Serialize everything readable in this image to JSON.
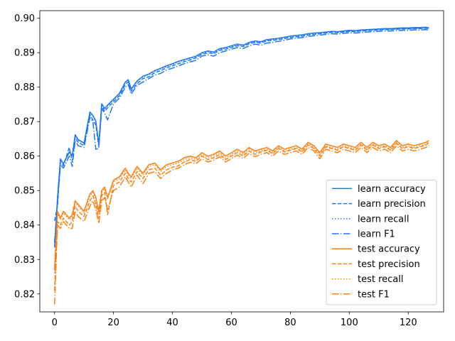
{
  "chart_data": {
    "type": "line",
    "title": "",
    "xlabel": "",
    "ylabel": "",
    "xlim": [
      -5,
      132
    ],
    "ylim": [
      0.8148,
      0.9022
    ],
    "xticks": [
      0,
      20,
      40,
      60,
      80,
      100,
      120
    ],
    "yticks": [
      0.82,
      0.83,
      0.84,
      0.85,
      0.86,
      0.87,
      0.88,
      0.89,
      0.9
    ],
    "ytick_labels": [
      "0.82",
      "0.83",
      "0.84",
      "0.85",
      "0.86",
      "0.87",
      "0.88",
      "0.89",
      "0.90"
    ],
    "grid": false,
    "legend_position": "lower-right",
    "colors": {
      "learn": "#1f77f4",
      "test": "#ff7f0e"
    },
    "x": [
      0,
      1,
      2,
      3,
      5,
      6,
      7,
      8,
      10,
      12,
      13,
      14,
      15,
      16,
      17,
      18,
      20,
      22,
      24,
      25,
      26,
      28,
      30,
      32,
      34,
      36,
      38,
      40,
      42,
      44,
      46,
      48,
      50,
      52,
      54,
      56,
      58,
      60,
      62,
      64,
      66,
      68,
      70,
      72,
      74,
      76,
      78,
      80,
      82,
      84,
      86,
      88,
      90,
      92,
      94,
      96,
      98,
      100,
      102,
      104,
      106,
      108,
      110,
      112,
      114,
      116,
      118,
      120,
      122,
      124,
      126,
      127
    ],
    "series": [
      {
        "name": "learn accuracy",
        "group": "learn",
        "dash": "solid",
        "values": [
          0.8335,
          0.8478,
          0.8592,
          0.8578,
          0.8612,
          0.8602,
          0.8662,
          0.8648,
          0.8638,
          0.8728,
          0.8718,
          0.8702,
          0.8635,
          0.8752,
          0.8738,
          0.8748,
          0.8765,
          0.8782,
          0.8815,
          0.8822,
          0.8795,
          0.8818,
          0.8832,
          0.8838,
          0.8848,
          0.8855,
          0.8862,
          0.8868,
          0.8875,
          0.888,
          0.8885,
          0.889,
          0.89,
          0.8905,
          0.8902,
          0.8912,
          0.8915,
          0.892,
          0.8925,
          0.8922,
          0.893,
          0.8934,
          0.8932,
          0.8938,
          0.894,
          0.8942,
          0.8945,
          0.8948,
          0.895,
          0.8952,
          0.8955,
          0.8957,
          0.8958,
          0.896,
          0.8962,
          0.8961,
          0.8963,
          0.8965,
          0.8964,
          0.8966,
          0.8967,
          0.8968,
          0.8969,
          0.897,
          0.897,
          0.8971,
          0.8972,
          0.8972,
          0.8973,
          0.8973,
          0.8974,
          0.8972
        ]
      },
      {
        "name": "learn precision",
        "group": "learn",
        "dash": "dashed",
        "values": [
          0.8412,
          0.8455,
          0.8582,
          0.8572,
          0.8625,
          0.8585,
          0.8655,
          0.864,
          0.863,
          0.872,
          0.8705,
          0.869,
          0.8628,
          0.8745,
          0.873,
          0.874,
          0.8758,
          0.8775,
          0.8808,
          0.8815,
          0.8788,
          0.881,
          0.8825,
          0.883,
          0.8842,
          0.8848,
          0.8856,
          0.8862,
          0.8868,
          0.8874,
          0.8879,
          0.8885,
          0.8895,
          0.89,
          0.8897,
          0.8907,
          0.891,
          0.8915,
          0.892,
          0.8918,
          0.8926,
          0.893,
          0.8928,
          0.8934,
          0.8936,
          0.8938,
          0.8941,
          0.8944,
          0.8946,
          0.8948,
          0.8951,
          0.8953,
          0.8955,
          0.8957,
          0.8959,
          0.8958,
          0.896,
          0.8962,
          0.8961,
          0.8963,
          0.8964,
          0.8965,
          0.8966,
          0.8967,
          0.8967,
          0.8968,
          0.8969,
          0.8969,
          0.897,
          0.897,
          0.8971,
          0.8969
        ]
      },
      {
        "name": "learn recall",
        "group": "learn",
        "dash": "dotted",
        "values": [
          0.834,
          0.848,
          0.859,
          0.8576,
          0.861,
          0.86,
          0.866,
          0.8646,
          0.8636,
          0.8726,
          0.8716,
          0.87,
          0.8633,
          0.875,
          0.8736,
          0.8746,
          0.8763,
          0.878,
          0.8813,
          0.882,
          0.8793,
          0.8816,
          0.883,
          0.8836,
          0.8846,
          0.8853,
          0.886,
          0.8866,
          0.8873,
          0.8878,
          0.8883,
          0.8888,
          0.8898,
          0.8903,
          0.89,
          0.891,
          0.8913,
          0.8918,
          0.8923,
          0.892,
          0.8928,
          0.8932,
          0.893,
          0.8936,
          0.8938,
          0.894,
          0.8943,
          0.8946,
          0.8948,
          0.895,
          0.8953,
          0.8955,
          0.8956,
          0.8958,
          0.896,
          0.8959,
          0.8961,
          0.8963,
          0.8962,
          0.8964,
          0.8965,
          0.8966,
          0.8967,
          0.8968,
          0.8968,
          0.8969,
          0.897,
          0.897,
          0.8971,
          0.8971,
          0.8972,
          0.897
        ]
      },
      {
        "name": "learn F1",
        "group": "learn",
        "dash": "dashdot",
        "values": [
          0.835,
          0.8465,
          0.8575,
          0.8565,
          0.86,
          0.857,
          0.8645,
          0.863,
          0.8625,
          0.8712,
          0.87,
          0.862,
          0.8622,
          0.8738,
          0.8725,
          0.8705,
          0.8752,
          0.8768,
          0.88,
          0.8808,
          0.878,
          0.8805,
          0.8815,
          0.8825,
          0.8835,
          0.884,
          0.885,
          0.8855,
          0.8862,
          0.8868,
          0.8873,
          0.8878,
          0.889,
          0.8894,
          0.889,
          0.89,
          0.8905,
          0.891,
          0.8915,
          0.8912,
          0.892,
          0.8925,
          0.8922,
          0.8928,
          0.893,
          0.8933,
          0.8936,
          0.894,
          0.8942,
          0.8944,
          0.8947,
          0.8949,
          0.8951,
          0.8953,
          0.8955,
          0.8954,
          0.8956,
          0.8958,
          0.8957,
          0.8959,
          0.896,
          0.8961,
          0.8962,
          0.8963,
          0.8963,
          0.8964,
          0.8965,
          0.8965,
          0.8966,
          0.8966,
          0.8967,
          0.8965
        ]
      },
      {
        "name": "test accuracy",
        "group": "test",
        "dash": "solid",
        "values": [
          0.827,
          0.844,
          0.842,
          0.844,
          0.842,
          0.843,
          0.847,
          0.846,
          0.844,
          0.849,
          0.85,
          0.848,
          0.844,
          0.85,
          0.851,
          0.848,
          0.853,
          0.854,
          0.8565,
          0.855,
          0.854,
          0.857,
          0.855,
          0.8575,
          0.858,
          0.856,
          0.8575,
          0.858,
          0.8585,
          0.8595,
          0.86,
          0.8595,
          0.861,
          0.86,
          0.8605,
          0.8615,
          0.86,
          0.861,
          0.862,
          0.861,
          0.8625,
          0.8615,
          0.862,
          0.8625,
          0.8615,
          0.863,
          0.862,
          0.8625,
          0.863,
          0.862,
          0.864,
          0.863,
          0.861,
          0.8635,
          0.863,
          0.8625,
          0.8635,
          0.863,
          0.8625,
          0.864,
          0.8625,
          0.864,
          0.863,
          0.8635,
          0.8625,
          0.8645,
          0.863,
          0.8635,
          0.863,
          0.8635,
          0.864,
          0.8645
        ]
      },
      {
        "name": "test precision",
        "group": "test",
        "dash": "dashed",
        "values": [
          0.821,
          0.841,
          0.84,
          0.842,
          0.84,
          0.841,
          0.8455,
          0.844,
          0.8425,
          0.847,
          0.8485,
          0.846,
          0.842,
          0.8485,
          0.8495,
          0.843,
          0.8515,
          0.8525,
          0.855,
          0.8535,
          0.8525,
          0.8555,
          0.8535,
          0.856,
          0.8565,
          0.8545,
          0.856,
          0.8568,
          0.8572,
          0.8583,
          0.859,
          0.8585,
          0.86,
          0.859,
          0.8595,
          0.8605,
          0.859,
          0.86,
          0.861,
          0.86,
          0.8615,
          0.8605,
          0.8612,
          0.8617,
          0.8607,
          0.8622,
          0.8612,
          0.8617,
          0.8622,
          0.8612,
          0.8632,
          0.8622,
          0.86,
          0.8627,
          0.8622,
          0.8617,
          0.8627,
          0.8622,
          0.8617,
          0.8632,
          0.8617,
          0.8632,
          0.8622,
          0.8627,
          0.8617,
          0.8637,
          0.8622,
          0.8627,
          0.8622,
          0.8627,
          0.8632,
          0.864
        ]
      },
      {
        "name": "test recall",
        "group": "test",
        "dash": "dotted",
        "values": [
          0.826,
          0.8435,
          0.8415,
          0.8435,
          0.8415,
          0.8425,
          0.8465,
          0.8455,
          0.8435,
          0.8485,
          0.8495,
          0.8475,
          0.8435,
          0.8495,
          0.8505,
          0.8475,
          0.8525,
          0.8535,
          0.856,
          0.8545,
          0.8535,
          0.8565,
          0.8545,
          0.857,
          0.8575,
          0.8555,
          0.857,
          0.8575,
          0.858,
          0.859,
          0.8595,
          0.859,
          0.8605,
          0.8595,
          0.86,
          0.861,
          0.8595,
          0.8605,
          0.8615,
          0.8605,
          0.862,
          0.861,
          0.8615,
          0.862,
          0.861,
          0.8625,
          0.8615,
          0.862,
          0.8625,
          0.8615,
          0.8635,
          0.8625,
          0.8605,
          0.863,
          0.8625,
          0.862,
          0.863,
          0.8625,
          0.862,
          0.8635,
          0.862,
          0.8635,
          0.8625,
          0.863,
          0.862,
          0.864,
          0.8625,
          0.863,
          0.8625,
          0.863,
          0.8635,
          0.864
        ]
      },
      {
        "name": "test F1",
        "group": "test",
        "dash": "dashdot",
        "values": [
          0.817,
          0.84,
          0.839,
          0.841,
          0.839,
          0.839,
          0.844,
          0.8425,
          0.841,
          0.8455,
          0.847,
          0.8445,
          0.8405,
          0.847,
          0.848,
          0.8445,
          0.85,
          0.851,
          0.854,
          0.8525,
          0.851,
          0.8545,
          0.852,
          0.855,
          0.8555,
          0.8535,
          0.855,
          0.856,
          0.8565,
          0.8575,
          0.8582,
          0.8578,
          0.8592,
          0.8583,
          0.8588,
          0.8598,
          0.8583,
          0.8593,
          0.8603,
          0.8593,
          0.8608,
          0.8598,
          0.8605,
          0.861,
          0.86,
          0.8615,
          0.8605,
          0.861,
          0.8615,
          0.8605,
          0.8625,
          0.8615,
          0.8592,
          0.862,
          0.8615,
          0.861,
          0.862,
          0.8615,
          0.861,
          0.8625,
          0.861,
          0.8625,
          0.8615,
          0.862,
          0.861,
          0.863,
          0.8615,
          0.862,
          0.8615,
          0.862,
          0.8625,
          0.8632
        ]
      }
    ]
  }
}
